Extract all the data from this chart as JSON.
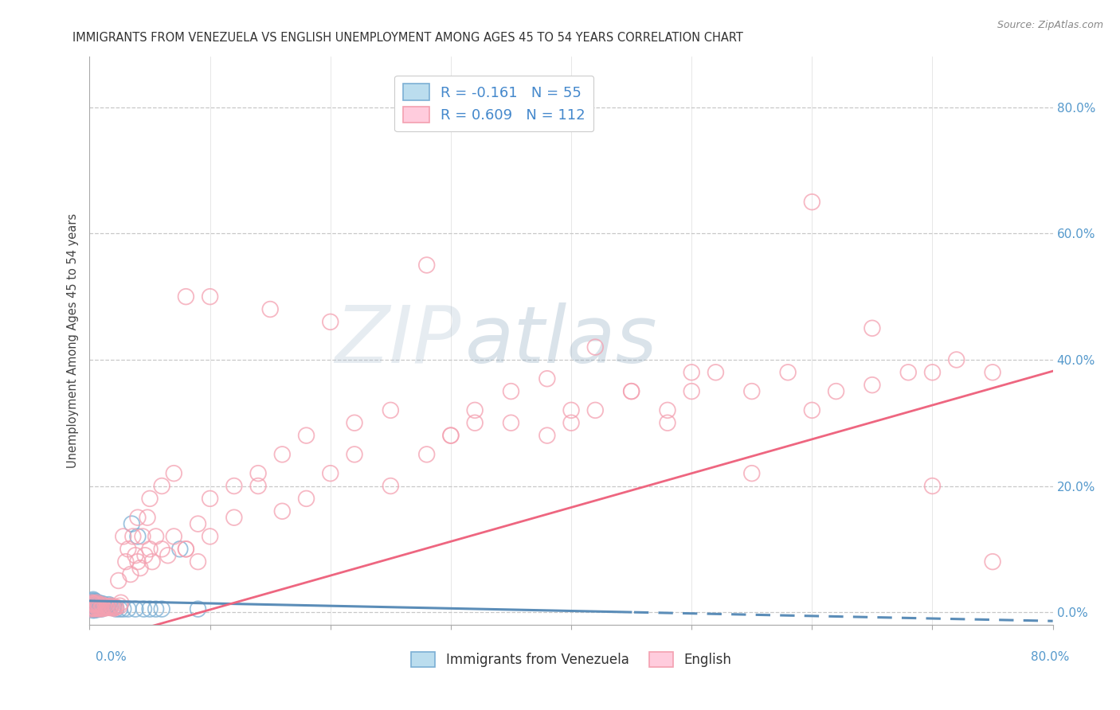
{
  "title": "IMMIGRANTS FROM VENEZUELA VS ENGLISH UNEMPLOYMENT AMONG AGES 45 TO 54 YEARS CORRELATION CHART",
  "source": "Source: ZipAtlas.com",
  "ylabel": "Unemployment Among Ages 45 to 54 years",
  "xlim": [
    0.0,
    0.8
  ],
  "ylim": [
    -0.02,
    0.88
  ],
  "legend_entry1": "R = -0.161   N = 55",
  "legend_entry2": "R = 0.609   N = 112",
  "legend_label1": "Immigrants from Venezuela",
  "legend_label2": "English",
  "color_blue": "#7BAFD4",
  "color_pink": "#F4A0B0",
  "color_line_blue": "#5B8DB8",
  "color_line_pink": "#EE6680",
  "watermark_zip": "ZIP",
  "watermark_atlas": "atlas",
  "title_fontsize": 10.5,
  "source_fontsize": 9,
  "R1": -0.161,
  "N1": 55,
  "R2": 0.609,
  "N2": 112,
  "blue_x": [
    0.001,
    0.001,
    0.001,
    0.002,
    0.002,
    0.002,
    0.002,
    0.003,
    0.003,
    0.003,
    0.003,
    0.003,
    0.004,
    0.004,
    0.004,
    0.004,
    0.005,
    0.005,
    0.005,
    0.005,
    0.006,
    0.006,
    0.006,
    0.007,
    0.007,
    0.007,
    0.008,
    0.008,
    0.009,
    0.009,
    0.01,
    0.01,
    0.011,
    0.011,
    0.012,
    0.013,
    0.014,
    0.015,
    0.016,
    0.017,
    0.018,
    0.02,
    0.022,
    0.025,
    0.028,
    0.032,
    0.038,
    0.04,
    0.05,
    0.06,
    0.035,
    0.045,
    0.055,
    0.075,
    0.09
  ],
  "blue_y": [
    0.005,
    0.01,
    0.015,
    0.005,
    0.008,
    0.012,
    0.018,
    0.003,
    0.007,
    0.012,
    0.016,
    0.02,
    0.004,
    0.009,
    0.014,
    0.018,
    0.004,
    0.008,
    0.013,
    0.017,
    0.004,
    0.009,
    0.015,
    0.005,
    0.01,
    0.015,
    0.005,
    0.012,
    0.006,
    0.014,
    0.005,
    0.012,
    0.007,
    0.013,
    0.008,
    0.01,
    0.008,
    0.01,
    0.012,
    0.008,
    0.01,
    0.008,
    0.005,
    0.005,
    0.005,
    0.005,
    0.005,
    0.12,
    0.005,
    0.005,
    0.14,
    0.005,
    0.005,
    0.1,
    0.005
  ],
  "pink_x": [
    0.001,
    0.001,
    0.002,
    0.002,
    0.003,
    0.003,
    0.004,
    0.004,
    0.005,
    0.005,
    0.006,
    0.006,
    0.007,
    0.007,
    0.008,
    0.009,
    0.01,
    0.01,
    0.011,
    0.012,
    0.013,
    0.014,
    0.015,
    0.016,
    0.017,
    0.018,
    0.019,
    0.02,
    0.021,
    0.022,
    0.024,
    0.025,
    0.026,
    0.028,
    0.03,
    0.032,
    0.034,
    0.036,
    0.038,
    0.04,
    0.042,
    0.044,
    0.046,
    0.048,
    0.05,
    0.052,
    0.055,
    0.06,
    0.065,
    0.07,
    0.08,
    0.09,
    0.1,
    0.12,
    0.14,
    0.16,
    0.18,
    0.2,
    0.22,
    0.25,
    0.28,
    0.3,
    0.32,
    0.35,
    0.38,
    0.4,
    0.42,
    0.45,
    0.48,
    0.5,
    0.52,
    0.55,
    0.58,
    0.6,
    0.62,
    0.65,
    0.68,
    0.7,
    0.72,
    0.75,
    0.04,
    0.05,
    0.06,
    0.07,
    0.08,
    0.09,
    0.1,
    0.12,
    0.14,
    0.16,
    0.18,
    0.22,
    0.25,
    0.3,
    0.35,
    0.4,
    0.45,
    0.5,
    0.55,
    0.6,
    0.65,
    0.7,
    0.75,
    0.38,
    0.42,
    0.48,
    0.32,
    0.28,
    0.2,
    0.15,
    0.1,
    0.08
  ],
  "pink_y": [
    0.005,
    0.012,
    0.008,
    0.015,
    0.006,
    0.013,
    0.007,
    0.014,
    0.005,
    0.012,
    0.008,
    0.015,
    0.006,
    0.012,
    0.008,
    0.005,
    0.006,
    0.012,
    0.008,
    0.006,
    0.01,
    0.007,
    0.009,
    0.008,
    0.007,
    0.01,
    0.008,
    0.006,
    0.008,
    0.008,
    0.05,
    0.01,
    0.015,
    0.12,
    0.08,
    0.1,
    0.06,
    0.12,
    0.09,
    0.08,
    0.07,
    0.12,
    0.09,
    0.15,
    0.1,
    0.08,
    0.12,
    0.1,
    0.09,
    0.12,
    0.1,
    0.08,
    0.12,
    0.15,
    0.2,
    0.16,
    0.18,
    0.22,
    0.25,
    0.2,
    0.25,
    0.28,
    0.3,
    0.35,
    0.28,
    0.3,
    0.32,
    0.35,
    0.32,
    0.35,
    0.38,
    0.35,
    0.38,
    0.32,
    0.35,
    0.36,
    0.38,
    0.38,
    0.4,
    0.38,
    0.15,
    0.18,
    0.2,
    0.22,
    0.1,
    0.14,
    0.18,
    0.2,
    0.22,
    0.25,
    0.28,
    0.3,
    0.32,
    0.28,
    0.3,
    0.32,
    0.35,
    0.38,
    0.22,
    0.65,
    0.45,
    0.2,
    0.08,
    0.37,
    0.42,
    0.3,
    0.32,
    0.55,
    0.46,
    0.48,
    0.5,
    0.5
  ],
  "blue_line_solid_end": 0.45,
  "pink_line_intercept": -0.05,
  "pink_line_slope": 0.54,
  "blue_line_intercept": 0.018,
  "blue_line_slope": -0.04
}
